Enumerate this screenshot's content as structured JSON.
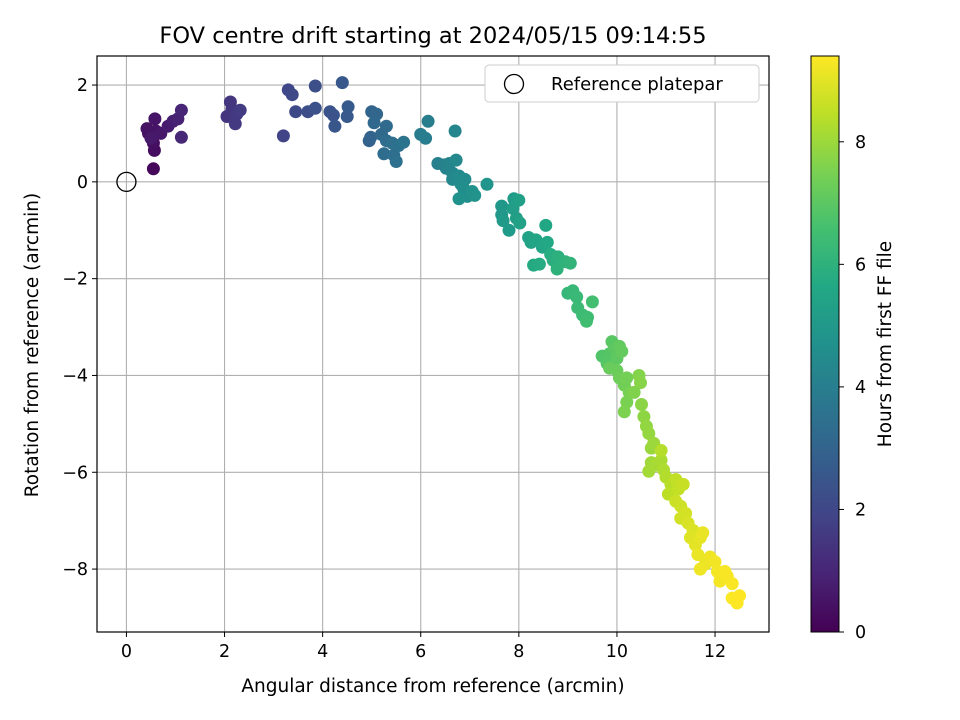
{
  "chart_data": {
    "type": "scatter",
    "title": "FOV centre drift starting at 2024/05/15 09:14:55",
    "xlabel": "Angular distance from reference (arcmin)",
    "ylabel": "Rotation from reference (arcmin)",
    "xlim": [
      -0.6,
      13.1
    ],
    "ylim": [
      -9.3,
      2.6
    ],
    "xticks": [
      0,
      2,
      4,
      6,
      8,
      10,
      12
    ],
    "yticks": [
      -8,
      -6,
      -4,
      -2,
      0,
      2
    ],
    "grid": true,
    "legend": {
      "label": "Reference platepar",
      "placement": "top-right"
    },
    "reference_point": {
      "x": 0,
      "y": 0
    },
    "colorbar": {
      "label": "Hours from first FF file",
      "min": 0,
      "max": 9.4,
      "ticks": [
        0,
        2,
        4,
        6,
        8
      ],
      "colormap": "viridis"
    },
    "points": [
      [
        0.55,
        0.27,
        0.2
      ],
      [
        0.57,
        0.65,
        0.3
      ],
      [
        0.55,
        0.8,
        0.35
      ],
      [
        0.45,
        1.0,
        0.4
      ],
      [
        0.42,
        1.1,
        0.45
      ],
      [
        0.6,
        1.05,
        0.5
      ],
      [
        0.58,
        1.3,
        0.55
      ],
      [
        0.7,
        1.0,
        0.6
      ],
      [
        0.5,
        0.9,
        0.65
      ],
      [
        0.85,
        1.15,
        0.7
      ],
      [
        0.95,
        1.25,
        0.8
      ],
      [
        1.05,
        1.3,
        0.9
      ],
      [
        1.12,
        1.48,
        1.0
      ],
      [
        1.12,
        0.92,
        1.05
      ],
      [
        2.05,
        1.35,
        1.4
      ],
      [
        2.15,
        1.5,
        1.45
      ],
      [
        2.12,
        1.65,
        1.5
      ],
      [
        2.25,
        1.4,
        1.55
      ],
      [
        2.22,
        1.2,
        1.6
      ],
      [
        2.32,
        1.48,
        1.65
      ],
      [
        3.2,
        0.95,
        1.9
      ],
      [
        3.3,
        1.9,
        2.0
      ],
      [
        3.38,
        1.8,
        2.05
      ],
      [
        3.45,
        1.45,
        2.1
      ],
      [
        3.7,
        1.45,
        2.2
      ],
      [
        3.85,
        1.98,
        2.25
      ],
      [
        3.85,
        1.52,
        2.3
      ],
      [
        4.15,
        1.45,
        2.4
      ],
      [
        4.22,
        1.38,
        2.45
      ],
      [
        4.25,
        1.15,
        2.5
      ],
      [
        4.4,
        2.05,
        2.55
      ],
      [
        4.5,
        1.35,
        2.6
      ],
      [
        4.52,
        1.55,
        2.65
      ],
      [
        4.95,
        0.85,
        2.95
      ],
      [
        4.98,
        0.92,
        3.0
      ],
      [
        5.0,
        1.45,
        3.05
      ],
      [
        5.1,
        1.4,
        3.1
      ],
      [
        5.05,
        1.22,
        3.15
      ],
      [
        5.2,
        0.98,
        3.2
      ],
      [
        5.3,
        1.15,
        3.25
      ],
      [
        5.3,
        0.85,
        3.3
      ],
      [
        5.25,
        0.58,
        3.35
      ],
      [
        5.45,
        0.55,
        3.4
      ],
      [
        5.42,
        0.8,
        3.45
      ],
      [
        5.5,
        0.42,
        3.5
      ],
      [
        5.55,
        0.75,
        3.55
      ],
      [
        5.65,
        0.82,
        3.6
      ],
      [
        6.0,
        0.98,
        3.9
      ],
      [
        6.1,
        0.9,
        3.95
      ],
      [
        6.15,
        1.25,
        4.0
      ],
      [
        6.35,
        0.38,
        4.05
      ],
      [
        6.48,
        0.35,
        4.1
      ],
      [
        6.52,
        0.28,
        4.15
      ],
      [
        6.58,
        0.38,
        4.2
      ],
      [
        6.65,
        0.18,
        4.25
      ],
      [
        6.7,
        1.05,
        4.3
      ],
      [
        6.72,
        0.45,
        4.35
      ],
      [
        6.65,
        0.05,
        4.4
      ],
      [
        6.78,
        0.12,
        4.45
      ],
      [
        6.82,
        -0.05,
        4.5
      ],
      [
        6.9,
        0.05,
        4.55
      ],
      [
        6.88,
        -0.15,
        4.6
      ],
      [
        6.95,
        -0.3,
        4.65
      ],
      [
        6.78,
        -0.35,
        4.7
      ],
      [
        7.05,
        -0.2,
        4.75
      ],
      [
        7.1,
        -0.28,
        4.8
      ],
      [
        7.35,
        -0.05,
        4.85
      ],
      [
        7.65,
        -0.5,
        4.95
      ],
      [
        7.65,
        -0.68,
        5.0
      ],
      [
        7.68,
        -0.8,
        5.05
      ],
      [
        7.8,
        -1.0,
        5.1
      ],
      [
        7.9,
        -0.35,
        5.15
      ],
      [
        7.88,
        -0.55,
        5.2
      ],
      [
        7.95,
        -0.75,
        5.25
      ],
      [
        8.0,
        -0.38,
        5.3
      ],
      [
        8.02,
        -0.85,
        5.35
      ],
      [
        8.2,
        -1.15,
        5.4
      ],
      [
        8.25,
        -1.25,
        5.45
      ],
      [
        8.35,
        -1.2,
        5.5
      ],
      [
        8.48,
        -1.35,
        5.55
      ],
      [
        8.55,
        -0.9,
        5.6
      ],
      [
        8.58,
        -1.25,
        5.65
      ],
      [
        8.3,
        -1.72,
        5.7
      ],
      [
        8.42,
        -1.7,
        5.75
      ],
      [
        8.65,
        -1.5,
        5.8
      ],
      [
        8.7,
        -1.62,
        5.85
      ],
      [
        8.75,
        -1.65,
        5.9
      ],
      [
        8.8,
        -1.55,
        5.95
      ],
      [
        8.78,
        -1.8,
        6.0
      ],
      [
        8.95,
        -1.65,
        6.05
      ],
      [
        9.05,
        -1.68,
        6.1
      ],
      [
        9.0,
        -2.3,
        6.2
      ],
      [
        9.1,
        -2.25,
        6.25
      ],
      [
        9.18,
        -2.38,
        6.3
      ],
      [
        9.2,
        -2.6,
        6.35
      ],
      [
        9.3,
        -2.75,
        6.4
      ],
      [
        9.4,
        -2.8,
        6.45
      ],
      [
        9.38,
        -2.88,
        6.5
      ],
      [
        9.5,
        -2.48,
        6.55
      ],
      [
        9.7,
        -3.6,
        6.8
      ],
      [
        9.85,
        -3.55,
        6.85
      ],
      [
        9.8,
        -3.75,
        6.9
      ],
      [
        9.9,
        -3.3,
        6.95
      ],
      [
        9.95,
        -3.45,
        7.0
      ],
      [
        10.0,
        -3.65,
        7.05
      ],
      [
        10.05,
        -3.4,
        7.1
      ],
      [
        10.1,
        -3.5,
        7.15
      ],
      [
        9.85,
        -3.85,
        7.2
      ],
      [
        10.0,
        -3.9,
        7.25
      ],
      [
        10.05,
        -4.05,
        7.3
      ],
      [
        10.15,
        -4.2,
        7.35
      ],
      [
        10.2,
        -4.05,
        7.4
      ],
      [
        10.25,
        -4.35,
        7.45
      ],
      [
        10.2,
        -4.55,
        7.5
      ],
      [
        10.15,
        -4.75,
        7.55
      ],
      [
        10.35,
        -4.35,
        7.6
      ],
      [
        10.45,
        -4.0,
        7.65
      ],
      [
        10.48,
        -4.15,
        7.7
      ],
      [
        10.5,
        -4.6,
        7.75
      ],
      [
        10.55,
        -4.85,
        7.8
      ],
      [
        10.6,
        -5.05,
        7.85
      ],
      [
        10.65,
        -5.2,
        7.9
      ],
      [
        10.7,
        -5.5,
        7.95
      ],
      [
        10.75,
        -5.4,
        8.0
      ],
      [
        10.7,
        -5.8,
        8.05
      ],
      [
        10.65,
        -5.98,
        8.1
      ],
      [
        10.8,
        -5.85,
        8.15
      ],
      [
        10.9,
        -5.75,
        8.2
      ],
      [
        10.95,
        -5.95,
        8.25
      ],
      [
        11.0,
        -6.1,
        8.3
      ],
      [
        10.9,
        -5.55,
        8.35
      ],
      [
        11.1,
        -6.25,
        8.4
      ],
      [
        11.05,
        -6.45,
        8.45
      ],
      [
        11.2,
        -6.15,
        8.5
      ],
      [
        11.25,
        -6.35,
        8.55
      ],
      [
        11.35,
        -6.25,
        8.6
      ],
      [
        11.2,
        -6.6,
        8.65
      ],
      [
        11.3,
        -6.7,
        8.7
      ],
      [
        11.3,
        -6.95,
        8.75
      ],
      [
        11.4,
        -6.85,
        8.8
      ],
      [
        11.45,
        -7.05,
        8.85
      ],
      [
        11.55,
        -7.2,
        8.9
      ],
      [
        11.5,
        -7.35,
        8.95
      ],
      [
        11.6,
        -7.5,
        9.0
      ],
      [
        11.7,
        -7.35,
        9.05
      ],
      [
        11.75,
        -7.25,
        9.1
      ],
      [
        11.65,
        -7.7,
        9.12
      ],
      [
        11.8,
        -7.9,
        9.15
      ],
      [
        11.7,
        -8.0,
        9.18
      ],
      [
        11.9,
        -7.75,
        9.2
      ],
      [
        12.0,
        -7.85,
        9.22
      ],
      [
        12.05,
        -8.05,
        9.25
      ],
      [
        12.1,
        -8.25,
        9.28
      ],
      [
        12.2,
        -8.05,
        9.3
      ],
      [
        12.25,
        -8.15,
        9.32
      ],
      [
        12.35,
        -8.3,
        9.34
      ],
      [
        12.35,
        -8.6,
        9.36
      ],
      [
        12.45,
        -8.7,
        9.38
      ],
      [
        12.5,
        -8.55,
        9.4
      ]
    ]
  }
}
